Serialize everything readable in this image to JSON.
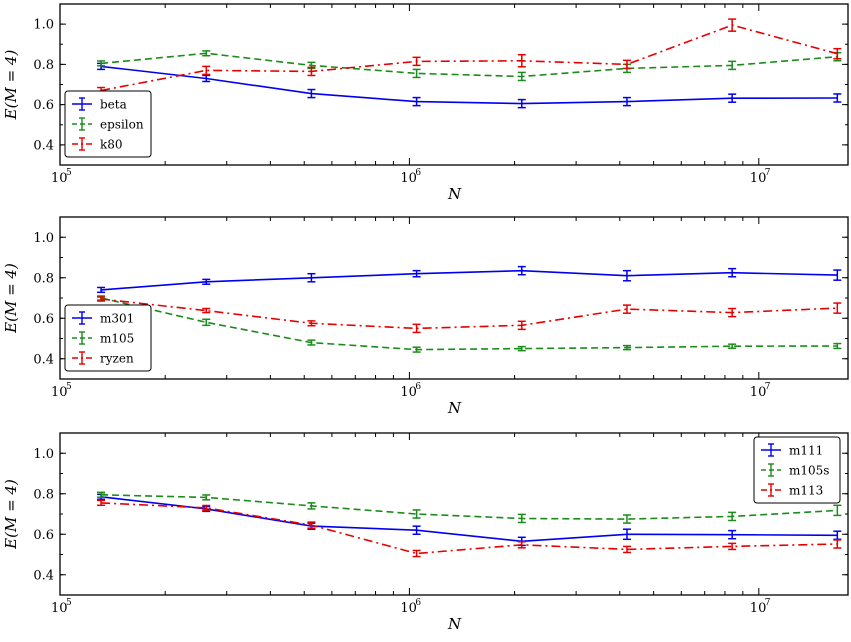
{
  "chart_data": [
    {
      "type": "line",
      "xscale": "log",
      "xlim": [
        100000,
        18000000
      ],
      "ylim": [
        0.3,
        1.1
      ],
      "yticks": [
        0.4,
        0.6,
        0.8,
        1.0
      ],
      "ytick_labels": [
        "0.4",
        "0.6",
        "0.8",
        "1.0"
      ],
      "xtick_labels": [
        {
          "base": "10",
          "exp": "5"
        },
        {
          "base": "10",
          "exp": "6"
        },
        {
          "base": "10",
          "exp": "7"
        }
      ],
      "xlabel": "N",
      "ylabel": "E(M = 4)",
      "legend_position": "lower-left",
      "x": [
        131072,
        262144,
        524288,
        1048576,
        2097152,
        4194304,
        8388608,
        16777216
      ],
      "series": [
        {
          "name": "beta",
          "color": "#0000ee",
          "dash": "solid",
          "values": [
            0.79,
            0.73,
            0.655,
            0.615,
            0.605,
            0.615,
            0.632,
            0.633
          ],
          "errors": [
            0.015,
            0.015,
            0.02,
            0.02,
            0.02,
            0.02,
            0.02,
            0.02
          ]
        },
        {
          "name": "epsilon",
          "color": "#1a8c1a",
          "dash": "dashed",
          "values": [
            0.805,
            0.855,
            0.795,
            0.755,
            0.74,
            0.78,
            0.795,
            0.838
          ],
          "errors": [
            0.012,
            0.012,
            0.015,
            0.02,
            0.02,
            0.02,
            0.02,
            0.02
          ]
        },
        {
          "name": "k80",
          "color": "#e60000",
          "dash": "dashdot",
          "values": [
            0.67,
            0.77,
            0.765,
            0.815,
            0.818,
            0.8,
            0.995,
            0.853
          ],
          "errors": [
            0.015,
            0.02,
            0.02,
            0.02,
            0.03,
            0.02,
            0.03,
            0.025
          ]
        }
      ]
    },
    {
      "type": "line",
      "xscale": "log",
      "xlim": [
        100000,
        18000000
      ],
      "ylim": [
        0.3,
        1.1
      ],
      "yticks": [
        0.4,
        0.6,
        0.8,
        1.0
      ],
      "ytick_labels": [
        "0.4",
        "0.6",
        "0.8",
        "1.0"
      ],
      "xtick_labels": [
        {
          "base": "10",
          "exp": "5"
        },
        {
          "base": "10",
          "exp": "6"
        },
        {
          "base": "10",
          "exp": "7"
        }
      ],
      "xlabel": "N",
      "ylabel": "E(M = 4)",
      "legend_position": "lower-left",
      "x": [
        131072,
        262144,
        524288,
        1048576,
        2097152,
        4194304,
        8388608,
        16777216
      ],
      "series": [
        {
          "name": "m301",
          "color": "#0000ee",
          "dash": "solid",
          "values": [
            0.74,
            0.78,
            0.8,
            0.82,
            0.835,
            0.81,
            0.825,
            0.813
          ],
          "errors": [
            0.012,
            0.012,
            0.02,
            0.015,
            0.02,
            0.025,
            0.02,
            0.025
          ]
        },
        {
          "name": "m105",
          "color": "#1a8c1a",
          "dash": "dashed",
          "values": [
            0.7,
            0.58,
            0.48,
            0.445,
            0.45,
            0.455,
            0.462,
            0.463
          ],
          "errors": [
            0.01,
            0.015,
            0.012,
            0.012,
            0.01,
            0.01,
            0.01,
            0.012
          ]
        },
        {
          "name": "ryzen",
          "color": "#e60000",
          "dash": "dashdot",
          "values": [
            0.695,
            0.638,
            0.575,
            0.55,
            0.565,
            0.645,
            0.628,
            0.65
          ],
          "errors": [
            0.01,
            0.01,
            0.012,
            0.02,
            0.02,
            0.02,
            0.02,
            0.025
          ]
        }
      ]
    },
    {
      "type": "line",
      "xscale": "log",
      "xlim": [
        100000,
        18000000
      ],
      "ylim": [
        0.3,
        1.1
      ],
      "yticks": [
        0.4,
        0.6,
        0.8,
        1.0
      ],
      "ytick_labels": [
        "0.4",
        "0.6",
        "0.8",
        "1.0"
      ],
      "xtick_labels": [
        {
          "base": "10",
          "exp": "5"
        },
        {
          "base": "10",
          "exp": "6"
        },
        {
          "base": "10",
          "exp": "7"
        }
      ],
      "xlabel": "N",
      "ylabel": "E(M = 4)",
      "legend_position": "upper-right",
      "x": [
        131072,
        262144,
        524288,
        1048576,
        2097152,
        4194304,
        8388608,
        16777216
      ],
      "series": [
        {
          "name": "m111",
          "color": "#0000ee",
          "dash": "solid",
          "values": [
            0.785,
            0.725,
            0.64,
            0.62,
            0.565,
            0.6,
            0.598,
            0.595
          ],
          "errors": [
            0.012,
            0.012,
            0.015,
            0.02,
            0.02,
            0.025,
            0.02,
            0.02
          ]
        },
        {
          "name": "m105s",
          "color": "#1a8c1a",
          "dash": "dashed",
          "values": [
            0.795,
            0.782,
            0.74,
            0.7,
            0.678,
            0.675,
            0.688,
            0.718
          ],
          "errors": [
            0.012,
            0.012,
            0.015,
            0.02,
            0.02,
            0.02,
            0.02,
            0.025
          ]
        },
        {
          "name": "m113",
          "color": "#e60000",
          "dash": "dashdot",
          "values": [
            0.755,
            0.73,
            0.645,
            0.505,
            0.548,
            0.525,
            0.54,
            0.552
          ],
          "errors": [
            0.012,
            0.012,
            0.015,
            0.015,
            0.015,
            0.015,
            0.015,
            0.02
          ]
        }
      ]
    }
  ]
}
